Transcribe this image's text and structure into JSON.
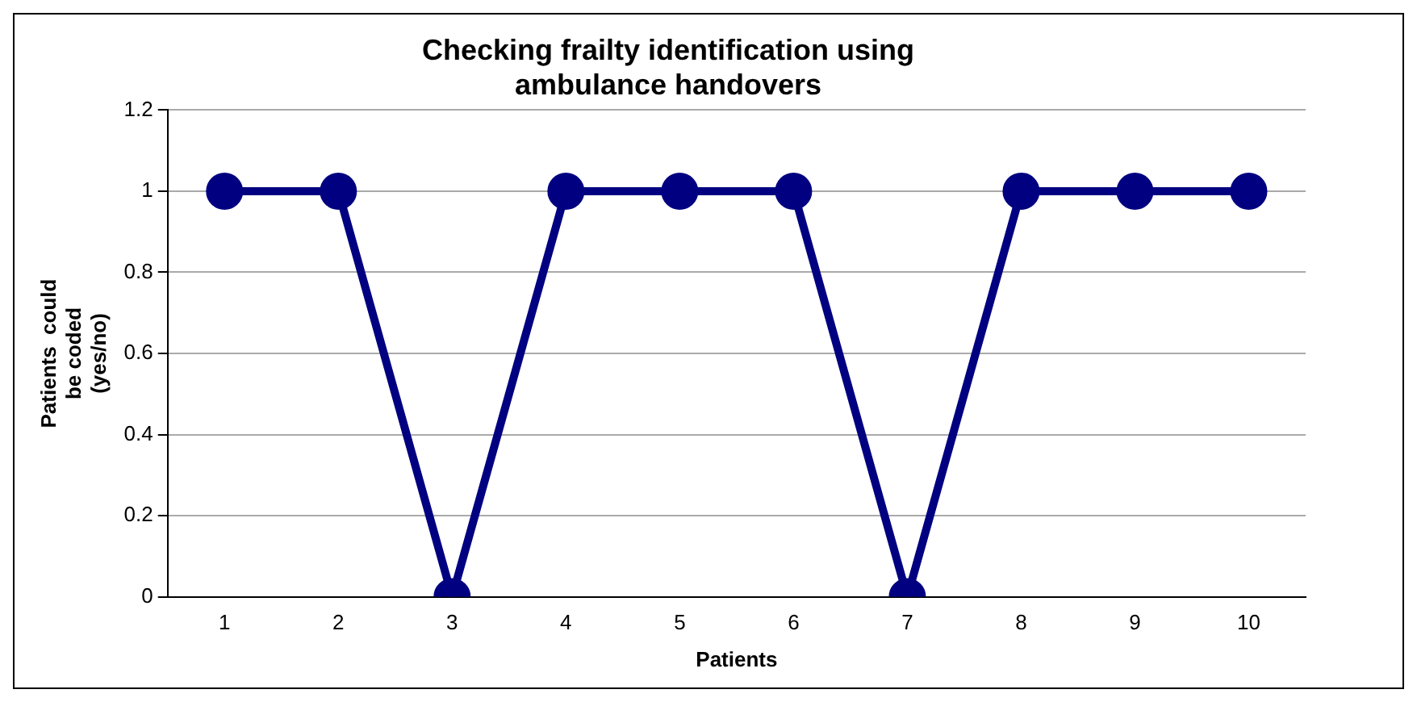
{
  "chart_data": {
    "type": "line",
    "title": "Checking frailty identification using ambulance handovers",
    "xlabel": "Patients",
    "ylabel": "Patients  could be coded (yes/no)",
    "categories": [
      "1",
      "2",
      "3",
      "4",
      "5",
      "6",
      "7",
      "8",
      "9",
      "10"
    ],
    "series": [
      {
        "color": "#000080",
        "values": [
          1,
          1,
          0,
          1,
          1,
          1,
          0,
          1,
          1,
          1
        ]
      }
    ],
    "ylim": [
      0,
      1.2
    ],
    "yticks": [
      0,
      0.2,
      0.4,
      0.6,
      0.8,
      1,
      1.2
    ],
    "grid": "y",
    "legend": false,
    "marker": "circle",
    "line_style": "solid"
  }
}
